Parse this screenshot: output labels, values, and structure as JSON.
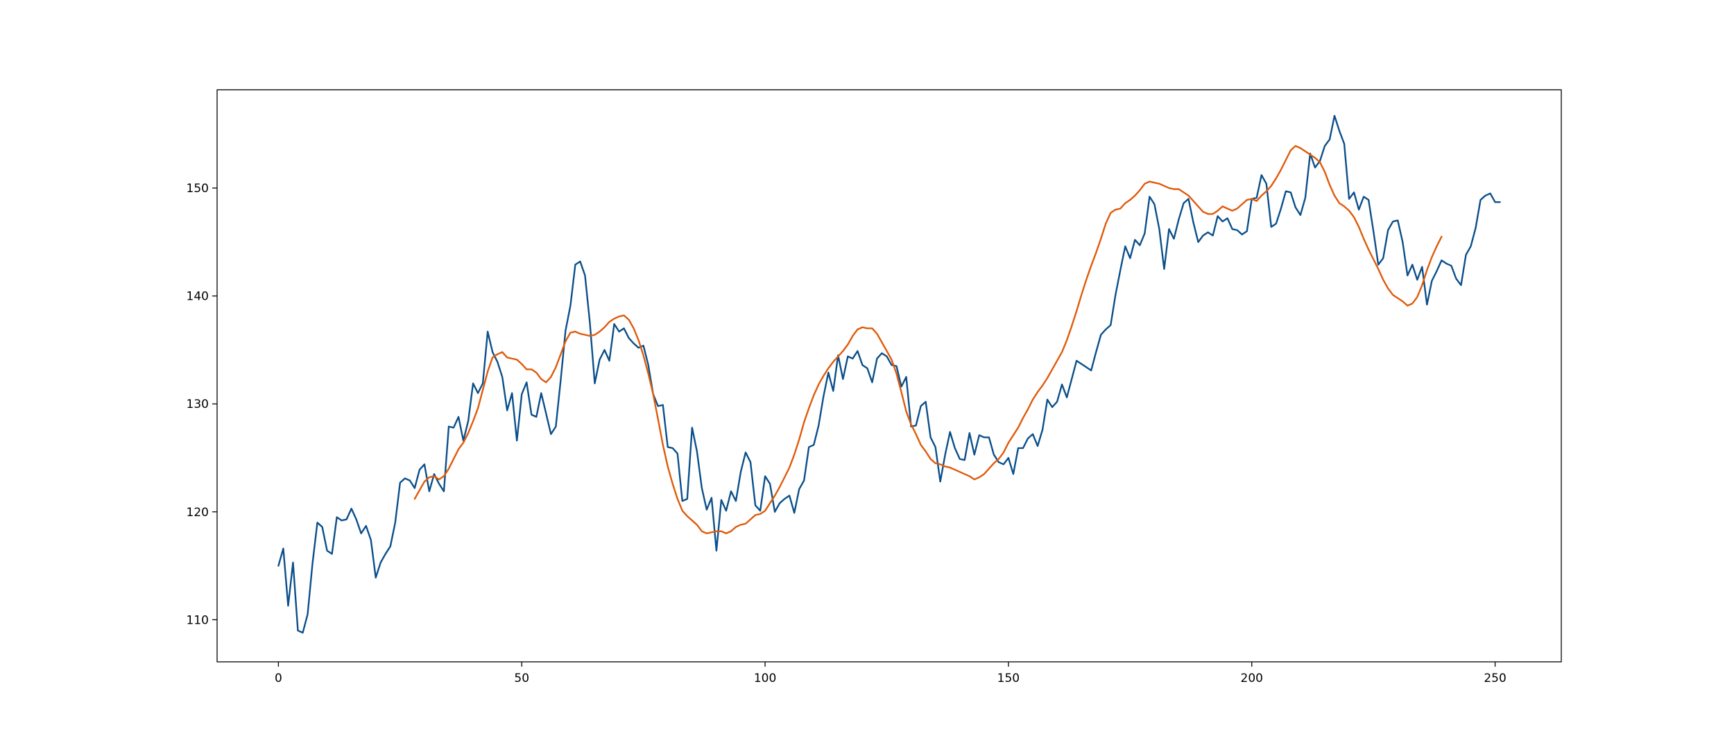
{
  "chart_data": {
    "type": "line",
    "title": "",
    "xlabel": "",
    "ylabel": "",
    "xlim": [
      -12.6,
      263.6
    ],
    "ylim": [
      106.1,
      159.1
    ],
    "xticks": [
      0,
      50,
      100,
      150,
      200,
      250
    ],
    "yticks": [
      110,
      120,
      130,
      140,
      150
    ],
    "x_tick_labels": [
      "0",
      "50",
      "100",
      "150",
      "200",
      "250"
    ],
    "y_tick_labels": [
      "110",
      "120",
      "130",
      "140",
      "150"
    ],
    "grid": false,
    "legend": "none",
    "series": [
      {
        "color": "#0b4f8a",
        "x_start": 0,
        "values": [
          115.0,
          116.6,
          111.3,
          115.3,
          109.0,
          108.8,
          110.5,
          115.2,
          119.0,
          118.6,
          116.4,
          116.1,
          119.5,
          119.2,
          119.3,
          120.3,
          119.3,
          118.0,
          118.7,
          117.4,
          113.9,
          115.3,
          116.1,
          116.8,
          119.0,
          122.7,
          123.1,
          122.9,
          122.2,
          123.9,
          124.4,
          121.9,
          123.5,
          122.6,
          121.9,
          127.9,
          127.8,
          128.8,
          126.6,
          128.4,
          131.9,
          131.0,
          131.9,
          136.7,
          134.8,
          133.9,
          132.5,
          129.4,
          131.0,
          126.6,
          130.9,
          132.0,
          129.0,
          128.8,
          131.0,
          129.1,
          127.2,
          127.9,
          132.2,
          136.8,
          139.1,
          142.9,
          143.2,
          141.9,
          137.5,
          131.9,
          134.1,
          135.0,
          134.0,
          137.4,
          136.7,
          137.0,
          136.1,
          135.6,
          135.2,
          135.4,
          133.6,
          130.9,
          129.8,
          129.9,
          126.0,
          125.9,
          125.4,
          121.0,
          121.2,
          127.8,
          125.6,
          122.2,
          120.2,
          121.3,
          116.4,
          121.1,
          120.1,
          121.9,
          121.0,
          123.7,
          125.5,
          124.6,
          120.6,
          120.1,
          123.3,
          122.6,
          120.0,
          120.8,
          121.2,
          121.5,
          119.9,
          122.1,
          122.9,
          126.0,
          126.2,
          128.0,
          130.7,
          132.9,
          131.2,
          134.5,
          132.3,
          134.4,
          134.2,
          134.9,
          133.6,
          133.3,
          132.0,
          134.2,
          134.7,
          134.4,
          133.6,
          133.5,
          131.6,
          132.5,
          127.9,
          128.0,
          129.8,
          130.2,
          126.9,
          126.0,
          122.8,
          125.3,
          127.4,
          125.9,
          124.9,
          124.8,
          127.3,
          125.3,
          127.1,
          126.9,
          126.9,
          125.3,
          124.6,
          124.4,
          125.0,
          123.5,
          125.9,
          125.9,
          126.8,
          127.2,
          126.1,
          127.6,
          130.4,
          129.7,
          130.2,
          131.8,
          130.6,
          132.3,
          134.0,
          133.7,
          133.4,
          133.1,
          134.8,
          136.4,
          136.9,
          137.3,
          140.1,
          142.4,
          144.6,
          143.5,
          145.2,
          144.7,
          145.8,
          149.2,
          148.5,
          146.2,
          142.5,
          146.2,
          145.3,
          147.1,
          148.6,
          149.0,
          146.8,
          145.0,
          145.6,
          145.9,
          145.6,
          147.4,
          146.9,
          147.2,
          146.2,
          146.1,
          145.7,
          146.0,
          149.0,
          149.1,
          151.2,
          150.4,
          146.4,
          146.7,
          148.1,
          149.7,
          149.6,
          148.2,
          147.5,
          149.1,
          153.2,
          151.9,
          152.5,
          153.9,
          154.5,
          156.7,
          155.3,
          154.1,
          149.0,
          149.6,
          148.0,
          149.2,
          148.9,
          146.0,
          142.9,
          143.5,
          146.1,
          146.9,
          147.0,
          145.0,
          141.9,
          142.9,
          141.5,
          142.7,
          139.2,
          141.4,
          142.3,
          143.3,
          143.0,
          142.8,
          141.6,
          141.0,
          143.8,
          144.6,
          146.3,
          148.9,
          149.3,
          149.5,
          148.7,
          148.7
        ]
      },
      {
        "color": "#e05a0a",
        "x_start": 28,
        "values": [
          121.2,
          122.0,
          122.8,
          123.2,
          123.3,
          123.0,
          123.3,
          124.0,
          124.9,
          125.8,
          126.4,
          127.3,
          128.4,
          129.6,
          131.3,
          133.0,
          134.3,
          134.6,
          134.8,
          134.3,
          134.2,
          134.1,
          133.7,
          133.2,
          133.2,
          132.9,
          132.3,
          132.0,
          132.5,
          133.4,
          134.6,
          135.8,
          136.6,
          136.7,
          136.5,
          136.4,
          136.3,
          136.4,
          136.7,
          137.1,
          137.6,
          137.9,
          138.1,
          138.2,
          137.8,
          137.0,
          135.9,
          134.5,
          132.8,
          130.9,
          128.6,
          126.2,
          124.2,
          122.6,
          121.2,
          120.1,
          119.6,
          119.2,
          118.8,
          118.2,
          118.0,
          118.1,
          118.2,
          118.2,
          118.0,
          118.2,
          118.6,
          118.8,
          118.9,
          119.3,
          119.7,
          119.8,
          120.1,
          120.8,
          121.5,
          122.3,
          123.2,
          124.1,
          125.3,
          126.7,
          128.3,
          129.6,
          130.8,
          131.8,
          132.6,
          133.3,
          133.9,
          134.4,
          134.9,
          135.5,
          136.3,
          136.9,
          137.1,
          137.0,
          137.0,
          136.5,
          135.7,
          134.9,
          134.1,
          132.8,
          131.1,
          129.3,
          128.1,
          127.2,
          126.2,
          125.6,
          124.9,
          124.5,
          124.4,
          124.2,
          124.1,
          123.9,
          123.7,
          123.5,
          123.3,
          123.0,
          123.2,
          123.5,
          124.0,
          124.5,
          124.9,
          125.5,
          126.4,
          127.1,
          127.8,
          128.7,
          129.5,
          130.4,
          131.1,
          131.7,
          132.4,
          133.2,
          134.0,
          134.8,
          135.9,
          137.2,
          138.6,
          140.1,
          141.5,
          142.8,
          144.0,
          145.3,
          146.7,
          147.7,
          148.0,
          148.1,
          148.6,
          148.9,
          149.3,
          149.8,
          150.4,
          150.6,
          150.5,
          150.4,
          150.2,
          150.0,
          149.9,
          149.9,
          149.6,
          149.3,
          148.8,
          148.3,
          147.8,
          147.6,
          147.6,
          147.9,
          148.3,
          148.1,
          147.9,
          148.1,
          148.5,
          148.9,
          149.0,
          148.8,
          149.3,
          149.7,
          150.2,
          150.9,
          151.7,
          152.6,
          153.5,
          153.9,
          153.7,
          153.4,
          153.1,
          152.8,
          152.4,
          151.5,
          150.3,
          149.3,
          148.6,
          148.3,
          147.9,
          147.3,
          146.4,
          145.3,
          144.3,
          143.4,
          142.5,
          141.5,
          140.7,
          140.1,
          139.8,
          139.5,
          139.1,
          139.3,
          139.9,
          141.0,
          142.4,
          143.6,
          144.6,
          145.5
        ]
      }
    ]
  }
}
